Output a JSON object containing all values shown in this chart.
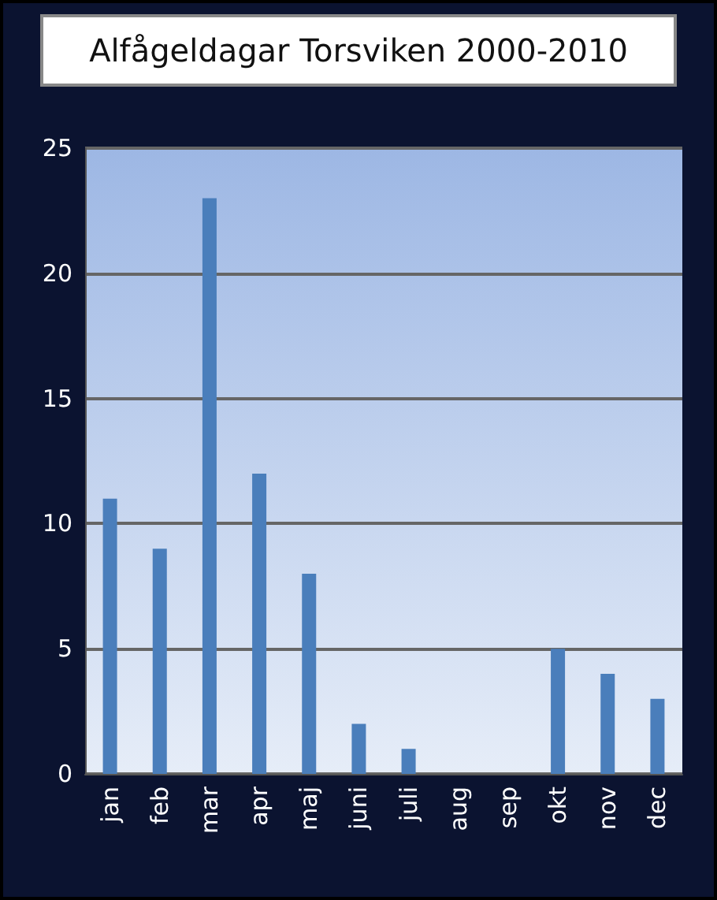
{
  "chart_data": {
    "type": "bar",
    "title": "Alfågeldagar Torsviken 2000-2010",
    "categories": [
      "jan",
      "feb",
      "mar",
      "apr",
      "maj",
      "juni",
      "juli",
      "aug",
      "sep",
      "okt",
      "nov",
      "dec"
    ],
    "values": [
      11,
      9,
      23,
      12,
      8,
      2,
      1,
      0,
      0,
      5,
      4,
      3
    ],
    "color": "#4a7ebb",
    "ylim": [
      0,
      25
    ],
    "yticks": [
      0,
      5,
      10,
      15,
      20,
      25
    ],
    "grid": "y"
  }
}
